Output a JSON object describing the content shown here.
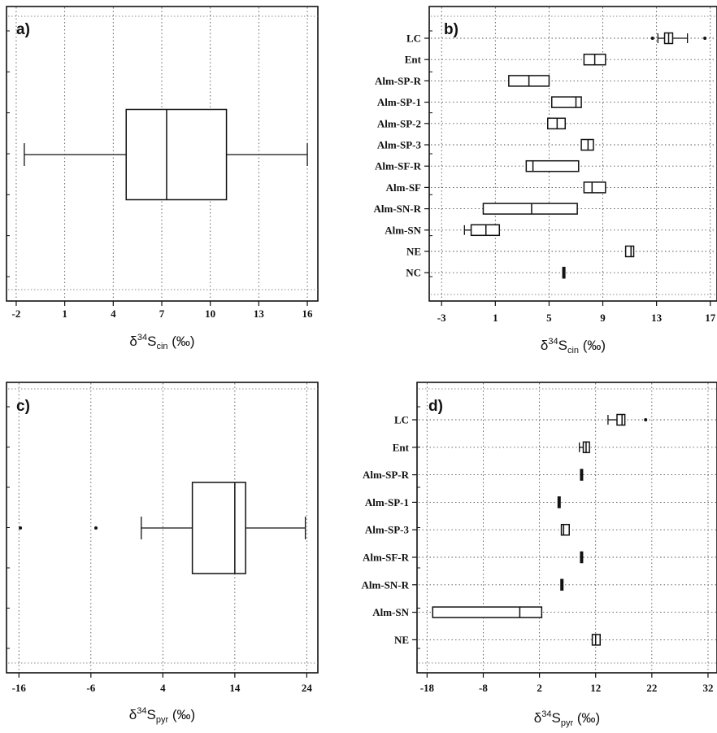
{
  "chart_data": [
    {
      "type": "boxplot",
      "panel_label": "a)",
      "xlabel": {
        "base": "δ",
        "sup": "34",
        "main": "S",
        "sub": "cin",
        "unit": "(‰)"
      },
      "x_ticks": [
        -2,
        1,
        4,
        7,
        10,
        13,
        16
      ],
      "xlim": [
        -2.5,
        16.5
      ],
      "grid": true,
      "boxes": [
        {
          "label": "",
          "whisker_low": -1.5,
          "q1": 4.8,
          "median": 7.3,
          "q3": 11.0,
          "whisker_high": 16.0
        }
      ]
    },
    {
      "type": "boxplot",
      "panel_label": "b)",
      "xlabel": {
        "base": "δ",
        "sup": "34",
        "main": "S",
        "sub": "cin",
        "unit": "(‰)"
      },
      "x_ticks": [
        -3,
        1,
        5,
        9,
        13,
        17
      ],
      "xlim": [
        -3.8,
        17.5
      ],
      "grid": true,
      "boxes": [
        {
          "label": "LC",
          "whisker_low": 13.1,
          "q1": 13.6,
          "median": 13.9,
          "q3": 14.2,
          "whisker_high": 15.3,
          "outliers": [
            12.7,
            16.6
          ]
        },
        {
          "label": "Ent",
          "whisker_low": 7.6,
          "q1": 7.6,
          "median": 8.4,
          "q3": 9.2,
          "whisker_high": 9.2
        },
        {
          "label": "Alm-SP-R",
          "whisker_low": 2.0,
          "q1": 2.0,
          "median": 3.5,
          "q3": 5.0,
          "whisker_high": 5.0
        },
        {
          "label": "Alm-SP-1",
          "whisker_low": 5.2,
          "q1": 5.2,
          "median": 7.0,
          "q3": 7.4,
          "whisker_high": 7.4
        },
        {
          "label": "Alm-SP-2",
          "whisker_low": 4.9,
          "q1": 4.9,
          "median": 5.6,
          "q3": 6.2,
          "whisker_high": 6.2
        },
        {
          "label": "Alm-SP-3",
          "whisker_low": 7.4,
          "q1": 7.4,
          "median": 7.9,
          "q3": 8.3,
          "whisker_high": 8.3
        },
        {
          "label": "Alm-SF-R",
          "whisker_low": 3.3,
          "q1": 3.3,
          "median": 3.8,
          "q3": 7.2,
          "whisker_high": 7.2
        },
        {
          "label": "Alm-SF",
          "whisker_low": 7.6,
          "q1": 7.6,
          "median": 8.2,
          "q3": 9.2,
          "whisker_high": 9.2
        },
        {
          "label": "Alm-SN-R",
          "whisker_low": 0.1,
          "q1": 0.1,
          "median": 3.7,
          "q3": 7.1,
          "whisker_high": 7.1
        },
        {
          "label": "Alm-SN",
          "whisker_low": -1.3,
          "q1": -0.8,
          "median": 0.3,
          "q3": 1.3,
          "whisker_high": 1.3
        },
        {
          "label": "NE",
          "whisker_low": 10.7,
          "q1": 10.7,
          "median": 11.1,
          "q3": 11.3,
          "whisker_high": 11.3
        },
        {
          "label": "NC",
          "whisker_low": 6.1,
          "q1": 6.1,
          "median": 6.1,
          "q3": 6.1,
          "whisker_high": 6.1
        }
      ]
    },
    {
      "type": "boxplot",
      "panel_label": "c)",
      "xlabel": {
        "base": "δ",
        "sup": "34",
        "main": "S",
        "sub": "pyr",
        "unit": "(‰)"
      },
      "x_ticks": [
        -16,
        -6,
        4,
        14,
        24
      ],
      "xlim": [
        -17.5,
        25.2
      ],
      "grid": true,
      "boxes": [
        {
          "label": "",
          "whisker_low": 1.0,
          "q1": 8.1,
          "median": 14.0,
          "q3": 15.5,
          "whisker_high": 23.8,
          "outliers": [
            -15.8,
            -5.3
          ]
        }
      ]
    },
    {
      "type": "boxplot",
      "panel_label": "d)",
      "xlabel": {
        "base": "δ",
        "sup": "34",
        "main": "S",
        "sub": "pyr",
        "unit": "(‰)"
      },
      "x_ticks": [
        -18,
        -8,
        2,
        12,
        22,
        32
      ],
      "xlim": [
        -19.5,
        33.6
      ],
      "grid": true,
      "boxes": [
        {
          "label": "LC",
          "whisker_low": 14.2,
          "q1": 15.8,
          "median": 16.7,
          "q3": 17.2,
          "whisker_high": 17.2,
          "outliers": [
            20.9
          ]
        },
        {
          "label": "Ent",
          "whisker_low": 9.1,
          "q1": 9.8,
          "median": 10.3,
          "q3": 10.9,
          "whisker_high": 10.9
        },
        {
          "label": "Alm-SP-R",
          "whisker_low": 9.5,
          "q1": 9.5,
          "median": 9.5,
          "q3": 9.5,
          "whisker_high": 9.5
        },
        {
          "label": "Alm-SP-1",
          "whisker_low": 5.5,
          "q1": 5.5,
          "median": 5.5,
          "q3": 5.5,
          "whisker_high": 5.5
        },
        {
          "label": "Alm-SP-3",
          "whisker_low": 5.9,
          "q1": 5.9,
          "median": 6.3,
          "q3": 7.3,
          "whisker_high": 7.3
        },
        {
          "label": "Alm-SF-R",
          "whisker_low": 9.5,
          "q1": 9.5,
          "median": 9.5,
          "q3": 9.5,
          "whisker_high": 9.5
        },
        {
          "label": "Alm-SN-R",
          "whisker_low": 6.0,
          "q1": 6.0,
          "median": 6.0,
          "q3": 6.0,
          "whisker_high": 6.0
        },
        {
          "label": "Alm-SN",
          "whisker_low": -17.0,
          "q1": -17.0,
          "median": -1.5,
          "q3": 2.4,
          "whisker_high": 2.4
        },
        {
          "label": "NE",
          "whisker_low": 11.4,
          "q1": 11.4,
          "median": 12.0,
          "q3": 12.8,
          "whisker_high": 12.8
        }
      ]
    }
  ]
}
